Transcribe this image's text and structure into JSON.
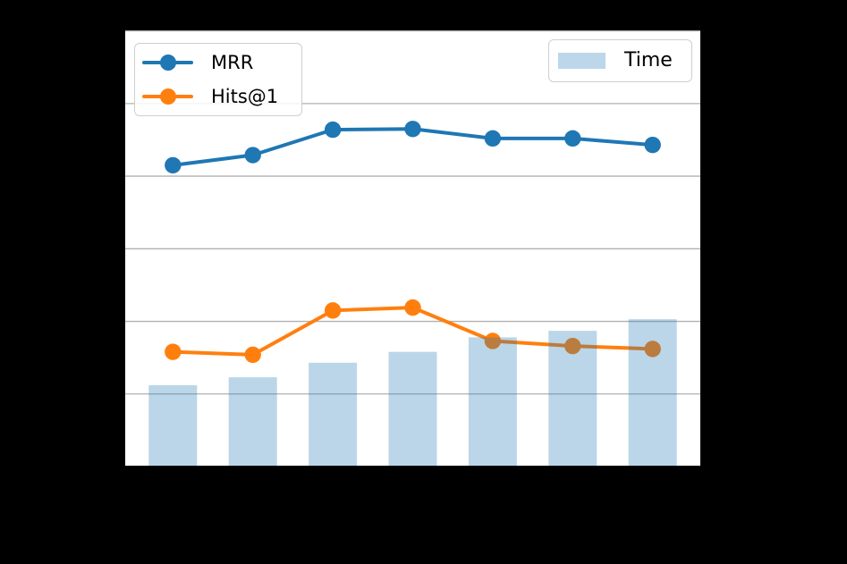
{
  "figure": {
    "background_color": "#000000",
    "plot_background_color": "#ffffff",
    "gridline_color": "#b0b0b0",
    "spine_color": "#000000"
  },
  "legends": {
    "series_legend": {
      "position": "upper left",
      "items": [
        {
          "label": "MRR",
          "color": "#1f77b4",
          "sample": "line-with-dot"
        },
        {
          "label": "Hits@1",
          "color": "#ff7f0e",
          "sample": "line-with-dot"
        }
      ]
    },
    "bar_legend": {
      "position": "upper right",
      "items": [
        {
          "label": "Time",
          "color": "#bcd7ea",
          "sample": "patch"
        }
      ]
    }
  },
  "chart_data": {
    "type": "line+bar",
    "x": [
      1,
      2,
      3,
      4,
      5,
      6,
      7
    ],
    "x_tick_labels_visible": false,
    "y_tick_labels_visible": false,
    "grid": "horizontal",
    "ylim": [
      0,
      0.602
    ],
    "ytick_interval": 0.1,
    "series": [
      {
        "name": "MRR",
        "type": "line",
        "color": "#1f77b4",
        "values": [
          0.415,
          0.429,
          0.464,
          0.465,
          0.452,
          0.452,
          0.443
        ]
      },
      {
        "name": "Hits@1",
        "type": "line",
        "color": "#ff7f0e",
        "values": [
          0.158,
          0.154,
          0.215,
          0.219,
          0.173,
          0.166,
          0.162
        ]
      },
      {
        "name": "Time",
        "type": "bar",
        "color": "rgba(31,119,180,0.3)",
        "values": [
          0.112,
          0.123,
          0.143,
          0.158,
          0.178,
          0.187,
          0.203
        ]
      }
    ],
    "legend_entries": [
      "MRR",
      "Hits@1",
      "Time"
    ]
  }
}
